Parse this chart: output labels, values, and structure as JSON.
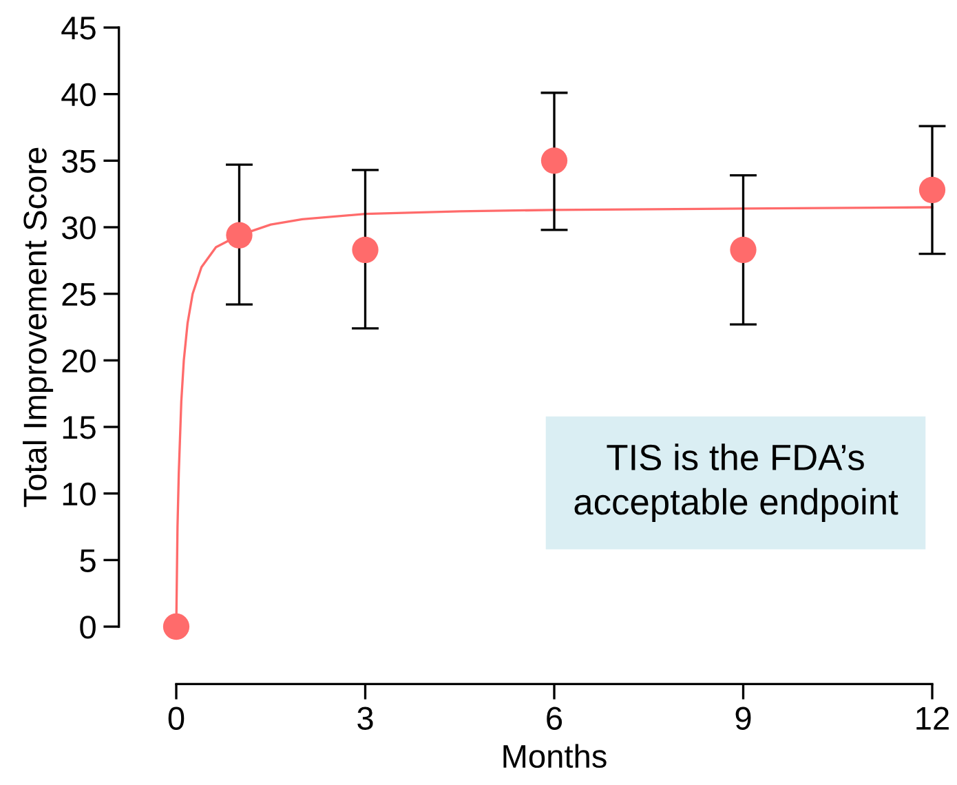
{
  "chart_data": {
    "type": "scatter",
    "xlabel": "Months",
    "ylabel": "Total Improvement Score",
    "xlim": [
      0,
      12
    ],
    "xticks": [
      0,
      3,
      6,
      9,
      12
    ],
    "ylim": [
      0,
      45
    ],
    "yticks": [
      0,
      5,
      10,
      15,
      20,
      25,
      30,
      35,
      40,
      45
    ],
    "grid": false,
    "legend": false,
    "marker": "circle",
    "annotations": [
      "TIS is the FDA’s\nacceptable endpoint"
    ],
    "series": [
      {
        "type": "line",
        "color": "#ff6b6b",
        "x": [
          0,
          0.02,
          0.04,
          0.08,
          0.12,
          0.18,
          0.26,
          0.4,
          0.63,
          1,
          1.5,
          2,
          3,
          4.5,
          6,
          9,
          12
        ],
        "values": [
          0,
          7.5,
          11.5,
          16.9,
          20.0,
          22.8,
          25.0,
          27.0,
          28.5,
          29.4,
          30.2,
          30.6,
          31.0,
          31.2,
          31.3,
          31.4,
          31.5
        ],
        "marker": "none"
      },
      {
        "color": "#ff6b6b",
        "x": [
          0,
          1,
          3,
          6,
          9,
          12
        ],
        "values": [
          0,
          29.4,
          28.3,
          35.0,
          28.3,
          32.8
        ],
        "errors": [
          null,
          [
            24.2,
            34.7
          ],
          [
            22.4,
            34.3
          ],
          [
            29.8,
            40.1
          ],
          [
            22.7,
            33.9
          ],
          [
            28.0,
            37.6
          ]
        ]
      }
    ]
  }
}
